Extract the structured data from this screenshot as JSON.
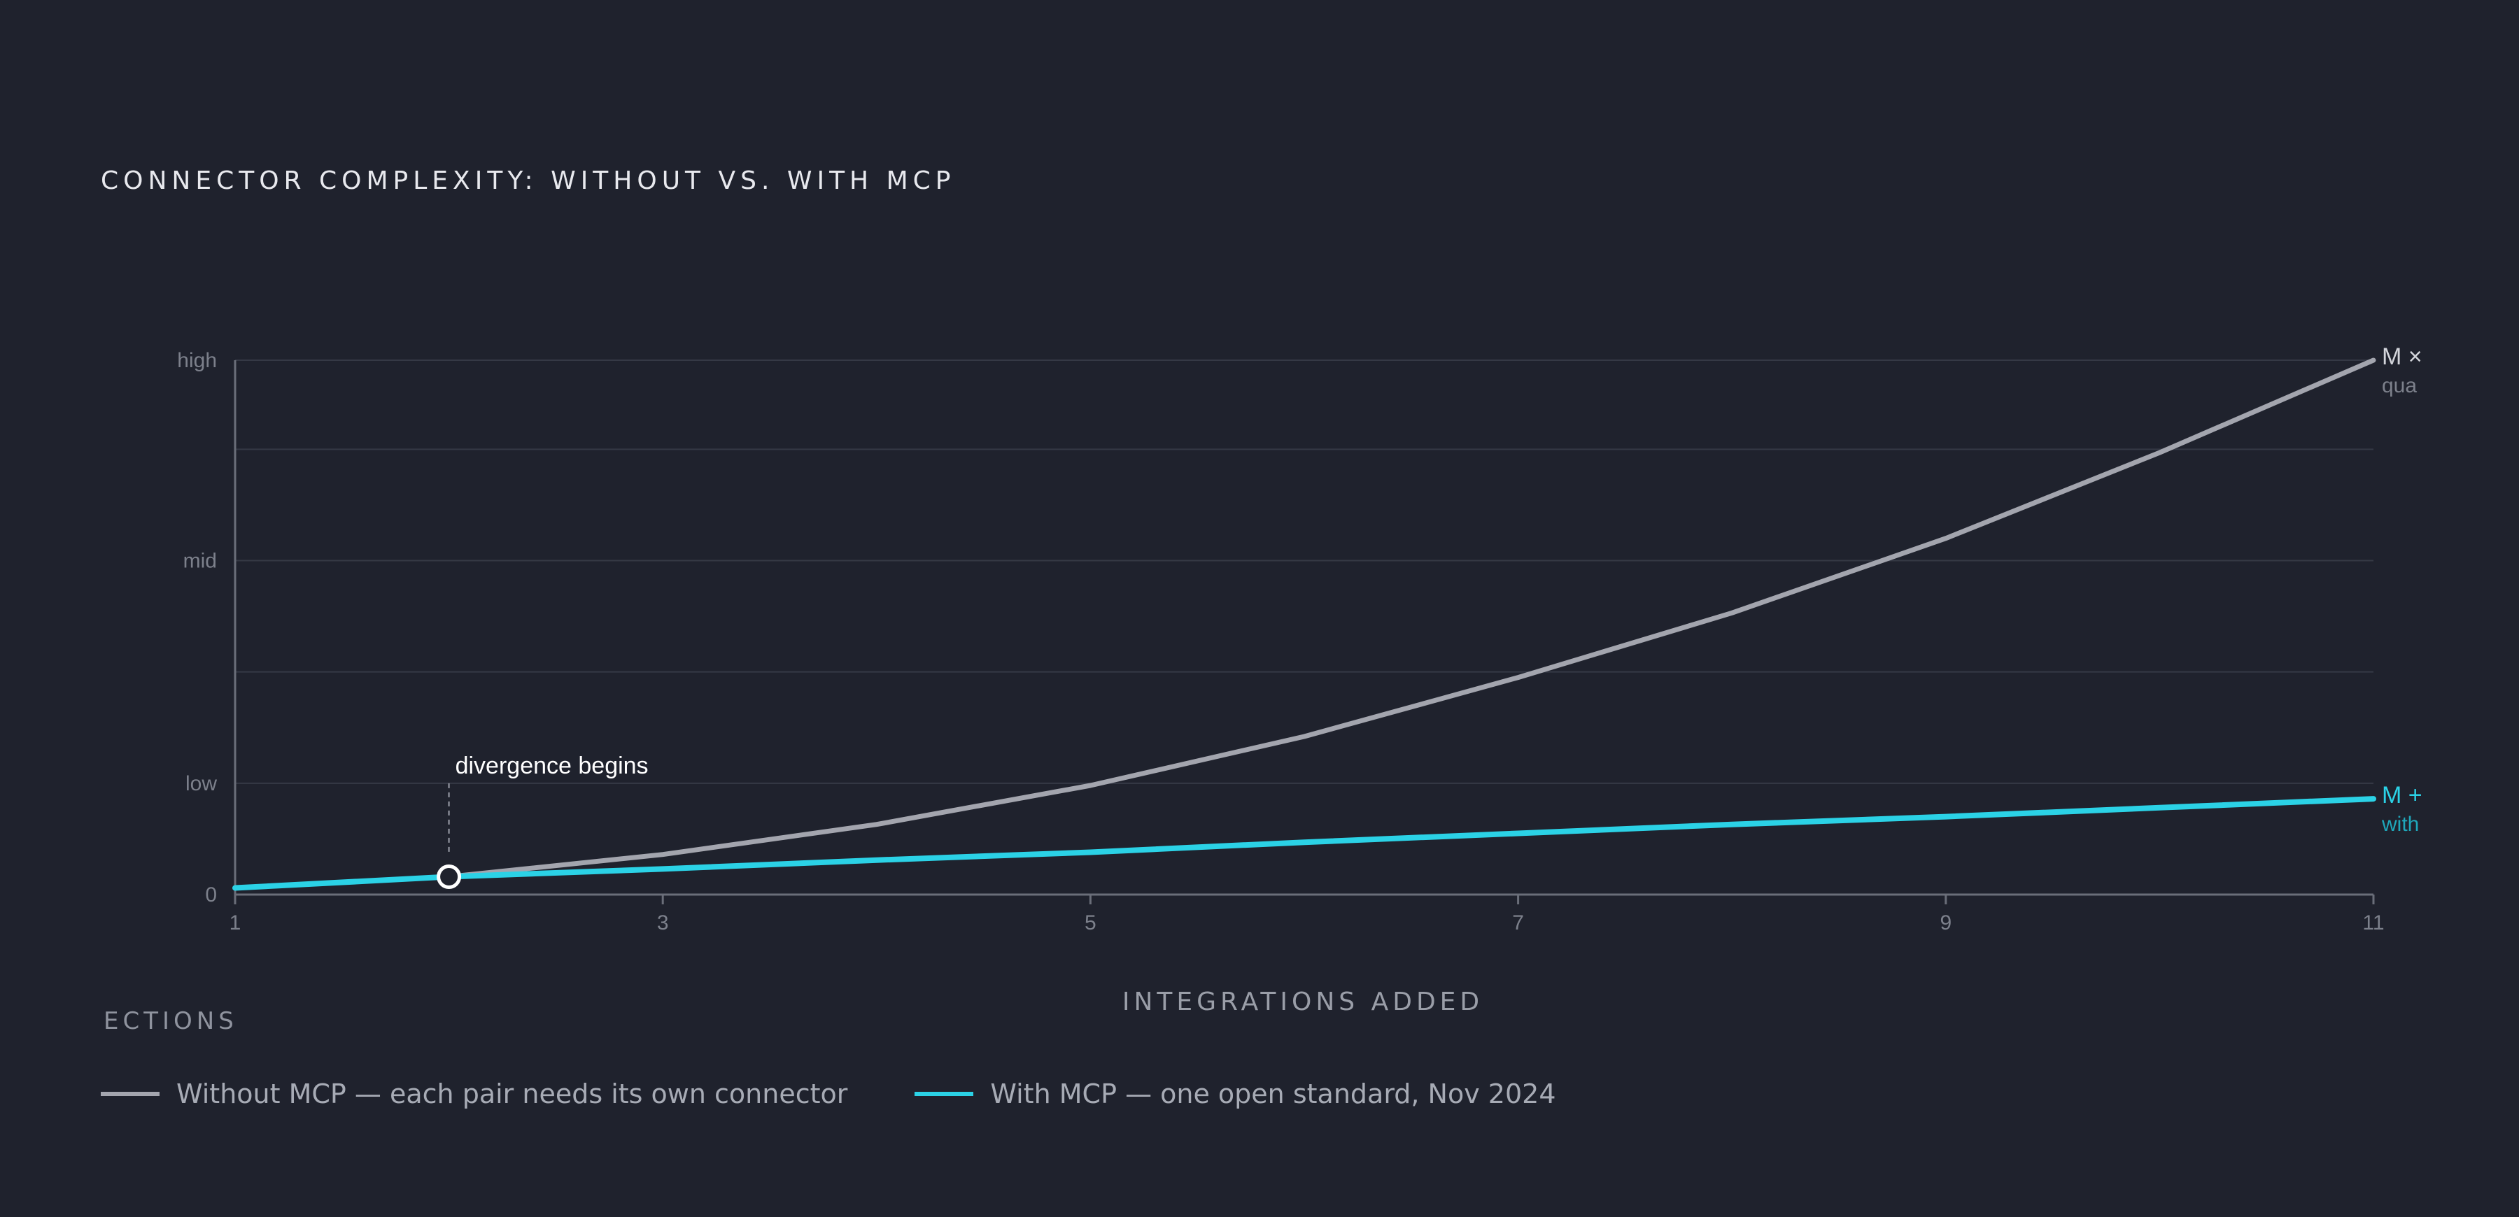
{
  "section_label": "ECTIONS",
  "chart_data": {
    "type": "line",
    "title": "CONNECTOR COMPLEXITY: WITHOUT VS. WITH MCP",
    "xlabel": "INTEGRATIONS ADDED",
    "ylabel": "",
    "x_ticks": [
      1,
      3,
      5,
      7,
      9,
      11
    ],
    "y_ticks": [
      {
        "label": "0",
        "value": 0
      },
      {
        "label": "low",
        "value": 1
      },
      {
        "label": "mid",
        "value": 3
      },
      {
        "label": "high",
        "value": 4.8
      }
    ],
    "xlim": [
      1,
      11
    ],
    "ylim": [
      0,
      4.8
    ],
    "grid": true,
    "gridlines_y": [
      1,
      2,
      3,
      4,
      4.8
    ],
    "legend": "bottom-left",
    "x": [
      1,
      2,
      3,
      4,
      5,
      6,
      7,
      8,
      9,
      10,
      11
    ],
    "series": [
      {
        "name": "Without MCP — each pair needs its own connector",
        "end_label": "M ×",
        "end_sublabel": "qua",
        "color": "#a3a5ae",
        "values": [
          0.06,
          0.16,
          0.36,
          0.63,
          0.98,
          1.42,
          1.95,
          2.53,
          3.2,
          3.97,
          4.8
        ]
      },
      {
        "name": "With MCP — one open standard, Nov 2024",
        "end_label": "M +",
        "end_sublabel": "with",
        "color": "#2bd2e6",
        "values": [
          0.06,
          0.16,
          0.23,
          0.31,
          0.38,
          0.47,
          0.55,
          0.63,
          0.7,
          0.78,
          0.86
        ]
      }
    ],
    "annotations": [
      {
        "text": "divergence begins",
        "x": 2,
        "y": 0.16
      }
    ]
  }
}
